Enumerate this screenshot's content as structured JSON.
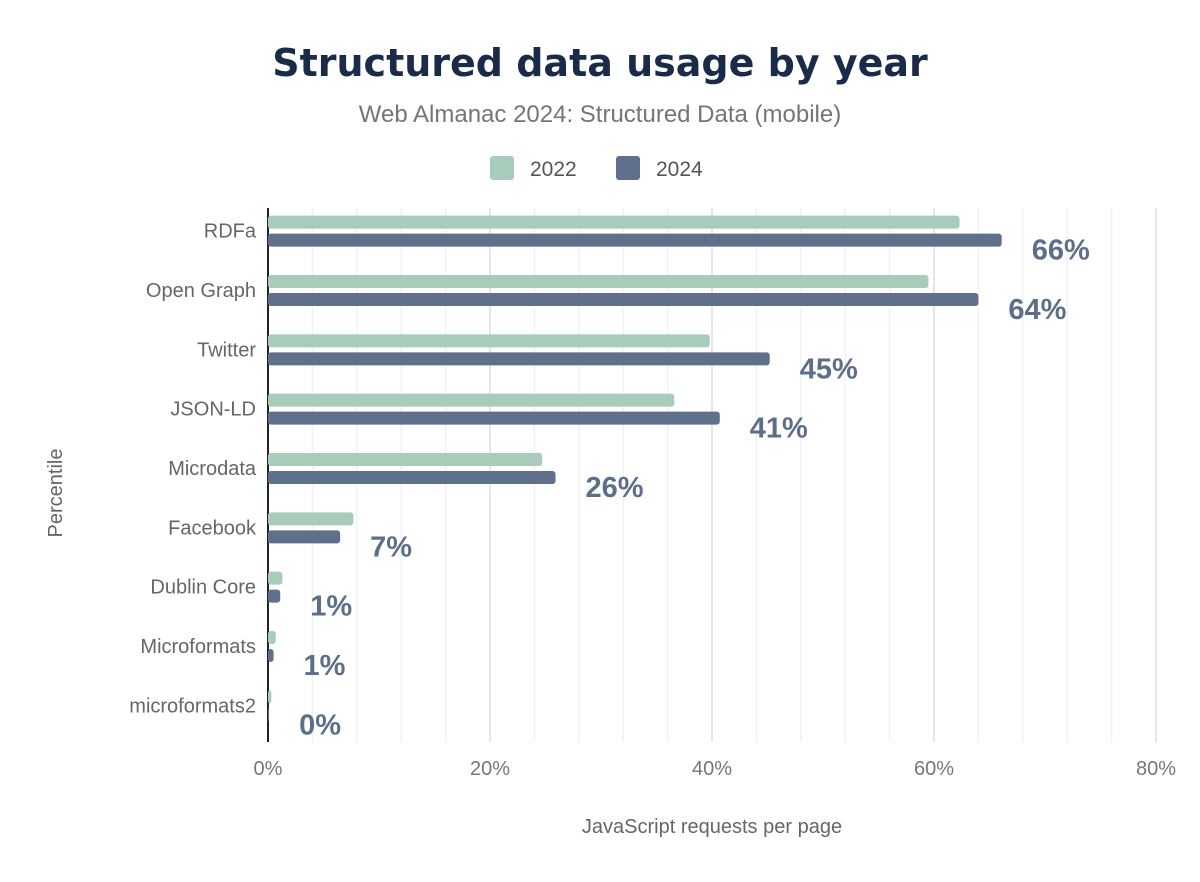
{
  "chart_data": {
    "type": "bar",
    "orientation": "horizontal",
    "title": "Structured data usage by year",
    "subtitle": "Web Almanac 2024: Structured Data (mobile)",
    "xlabel": "JavaScript requests per page",
    "ylabel": "Percentile",
    "xlim": [
      0,
      80
    ],
    "xticks": [
      "0%",
      "20%",
      "40%",
      "60%",
      "80%"
    ],
    "xtick_values": [
      0,
      20,
      40,
      60,
      80
    ],
    "minor_grid_step": 4,
    "grid": true,
    "legend_position": "top",
    "categories": [
      "RDFa",
      "Open Graph",
      "Twitter",
      "JSON-LD",
      "Microdata",
      "Facebook",
      "Dublin Core",
      "Microformats",
      "microformats2"
    ],
    "series": [
      {
        "name": "2022",
        "color": "#a8cbbb",
        "values": [
          62.3,
          59.5,
          39.8,
          36.6,
          24.7,
          7.7,
          1.3,
          0.7,
          0.3
        ]
      },
      {
        "name": "2024",
        "color": "#5f6f8c",
        "values": [
          66.1,
          64.0,
          45.2,
          40.7,
          25.9,
          6.5,
          1.1,
          0.5,
          0.1
        ]
      }
    ],
    "data_labels": [
      "66%",
      "64%",
      "45%",
      "41%",
      "26%",
      "7%",
      "1%",
      "1%",
      "0%"
    ]
  }
}
